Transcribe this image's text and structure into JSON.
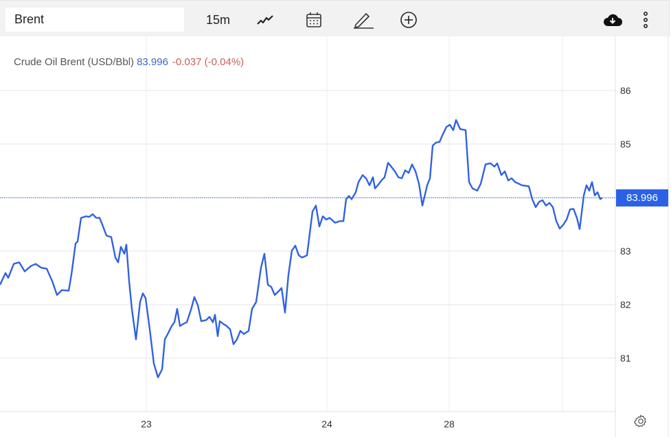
{
  "toolbar": {
    "search_value": "Brent",
    "interval": "15m",
    "icons": [
      "line-chart-icon",
      "calendar-icon",
      "pencil-icon",
      "plus-circle-icon",
      "cloud-download-icon",
      "more-vertical-icon"
    ]
  },
  "legend": {
    "name": "Crude Oil Brent (USD/Bbl)",
    "last": "83.996",
    "change": "-0.037 (-0.04%)"
  },
  "colors": {
    "line": "#2f62e0",
    "badge": "#2a62e6",
    "change_negative": "#c9605a",
    "last_value": "#3d63c8"
  },
  "chart_data": {
    "type": "line",
    "title": "Crude Oil Brent (USD/Bbl)",
    "xlabel": "",
    "ylabel": "",
    "x_ticks": [
      "23",
      "24",
      "28",
      ""
    ],
    "y_ticks": [
      "81",
      "82",
      "83",
      "84",
      "85",
      "86"
    ],
    "ylim": [
      80,
      87
    ],
    "grid": true,
    "last_price_label": "83.996",
    "series": [
      {
        "values": [
          82.37,
          82.59,
          82.5,
          82.76,
          82.79,
          82.62,
          82.72,
          82.76,
          82.69,
          82.67,
          82.44,
          82.18,
          82.27,
          82.26,
          82.56,
          83.14,
          83.18,
          83.62,
          83.65,
          83.64,
          83.69,
          83.62,
          83.62,
          83.46,
          83.29,
          83.26,
          82.88,
          82.79,
          83.08,
          82.95,
          83.12,
          82.44,
          81.92,
          81.35,
          82.05,
          82.21,
          82.12,
          81.54,
          80.9,
          80.64,
          80.79,
          81.35,
          81.47,
          81.6,
          81.67,
          81.92,
          81.6,
          81.64,
          81.67,
          81.9,
          82.14,
          81.99,
          81.69,
          81.71,
          81.77,
          81.67,
          81.81,
          81.41,
          81.69,
          81.64,
          81.6,
          81.54,
          81.26,
          81.35,
          81.51,
          81.45,
          81.51,
          81.92,
          82.05,
          82.69,
          82.95,
          82.37,
          82.33,
          82.18,
          82.24,
          82.31,
          81.85,
          82.56,
          83.01,
          83.1,
          82.92,
          82.88,
          82.92,
          83.74,
          83.85,
          83.46,
          83.65,
          83.59,
          83.62,
          83.53,
          83.56,
          83.56,
          83.97,
          84.03,
          83.97,
          84.1,
          84.29,
          84.42,
          84.36,
          84.23,
          84.38,
          84.17,
          84.26,
          84.33,
          84.38,
          84.65,
          84.59,
          84.49,
          84.38,
          84.36,
          84.51,
          84.46,
          84.62,
          84.49,
          84.26,
          83.85,
          84.23,
          84.36,
          84.97,
          85.03,
          85.04,
          85.19,
          85.32,
          85.36,
          85.26,
          85.45,
          85.28,
          85.26,
          84.29,
          84.17,
          84.13,
          84.26,
          84.62,
          84.64,
          84.58,
          84.64,
          84.42,
          84.49,
          84.32,
          84.36,
          84.29,
          84.26,
          84.23,
          84.21,
          83.97,
          83.82,
          83.92,
          83.95,
          83.85,
          83.9,
          83.82,
          83.56,
          83.42,
          83.49,
          83.59,
          83.78,
          83.79,
          83.62,
          83.41,
          84.04,
          84.23,
          84.13,
          84.29,
          84.04,
          84.1,
          83.97,
          83.996
        ]
      }
    ]
  }
}
